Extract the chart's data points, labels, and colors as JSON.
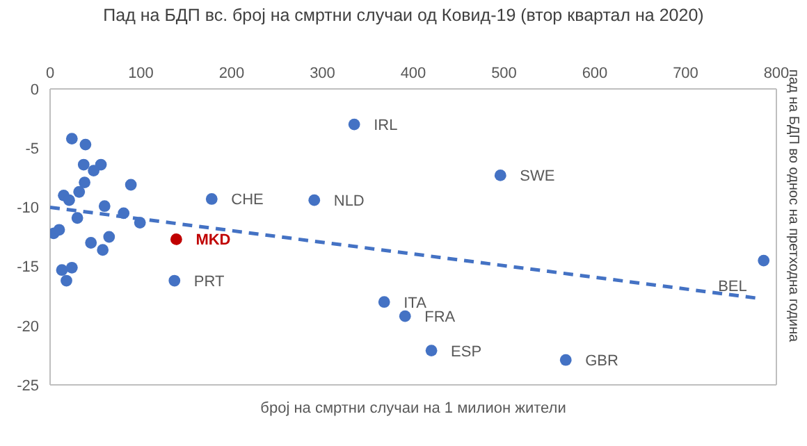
{
  "chart_data": {
    "type": "scatter",
    "title": "Пад на БДП вс. број на смртни случаи од Ковид-19 (втор квартал на 2020)",
    "xlabel": "број на смртни случаи на 1 милион жители",
    "ylabel": "пад на БДП во однос на претходна година",
    "xlim": [
      0,
      800
    ],
    "xticks": [
      0,
      100,
      200,
      300,
      400,
      500,
      600,
      700,
      800
    ],
    "ylim": [
      -25,
      0
    ],
    "yticks": [
      -25,
      -20,
      -15,
      -10,
      -5,
      0
    ],
    "grid": false,
    "legend": false,
    "series": [
      {
        "marker": "circle",
        "x": [
          24,
          39,
          37,
          56,
          48,
          38,
          89,
          32,
          15,
          21,
          60,
          178,
          30,
          81,
          99,
          4,
          10,
          65,
          45,
          58,
          139,
          13,
          24,
          18,
          137,
          335,
          291,
          496,
          368,
          391,
          420,
          568,
          786
        ],
        "values": [
          -4.2,
          -4.7,
          -6.4,
          -6.4,
          -6.9,
          -7.9,
          -8.1,
          -8.7,
          -9.0,
          -9.4,
          -9.9,
          -9.3,
          -10.9,
          -10.5,
          -11.3,
          -12.2,
          -11.9,
          -12.5,
          -13.0,
          -13.6,
          -12.7,
          -15.3,
          -15.1,
          -16.2,
          -16.2,
          -3.0,
          -9.4,
          -7.3,
          -18.0,
          -19.2,
          -22.1,
          -22.9,
          -14.5
        ],
        "colors": [
          "#4472c4",
          "#4472c4",
          "#4472c4",
          "#4472c4",
          "#4472c4",
          "#4472c4",
          "#4472c4",
          "#4472c4",
          "#4472c4",
          "#4472c4",
          "#4472c4",
          "#4472c4",
          "#4472c4",
          "#4472c4",
          "#4472c4",
          "#4472c4",
          "#4472c4",
          "#4472c4",
          "#4472c4",
          "#4472c4",
          "#c00000",
          "#4472c4",
          "#4472c4",
          "#4472c4",
          "#4472c4",
          "#4472c4",
          "#4472c4",
          "#4472c4",
          "#4472c4",
          "#4472c4",
          "#4472c4",
          "#4472c4",
          "#4472c4"
        ]
      },
      {
        "type": "line",
        "color": "#4472c4",
        "line_style": "dashed",
        "marker": "none",
        "x": [
          0,
          781
        ],
        "values": [
          -10.0,
          -17.7
        ]
      }
    ],
    "annotations": [
      {
        "text": "CHE",
        "x": 178,
        "y": -9.3
      },
      {
        "text": "MKD",
        "x": 139,
        "y": -12.7
      },
      {
        "text": "PRT",
        "x": 137,
        "y": -16.2
      },
      {
        "text": "IRL",
        "x": 335,
        "y": -3.0
      },
      {
        "text": "NLD",
        "x": 291,
        "y": -9.4
      },
      {
        "text": "SWE",
        "x": 496,
        "y": -7.3
      },
      {
        "text": "ITA",
        "x": 368,
        "y": -18.0
      },
      {
        "text": "FRA",
        "x": 391,
        "y": -19.2
      },
      {
        "text": "ESP",
        "x": 420,
        "y": -22.1
      },
      {
        "text": "GBR",
        "x": 568,
        "y": -22.9
      },
      {
        "text": "BEL",
        "x": 786,
        "y": -14.5
      }
    ]
  }
}
